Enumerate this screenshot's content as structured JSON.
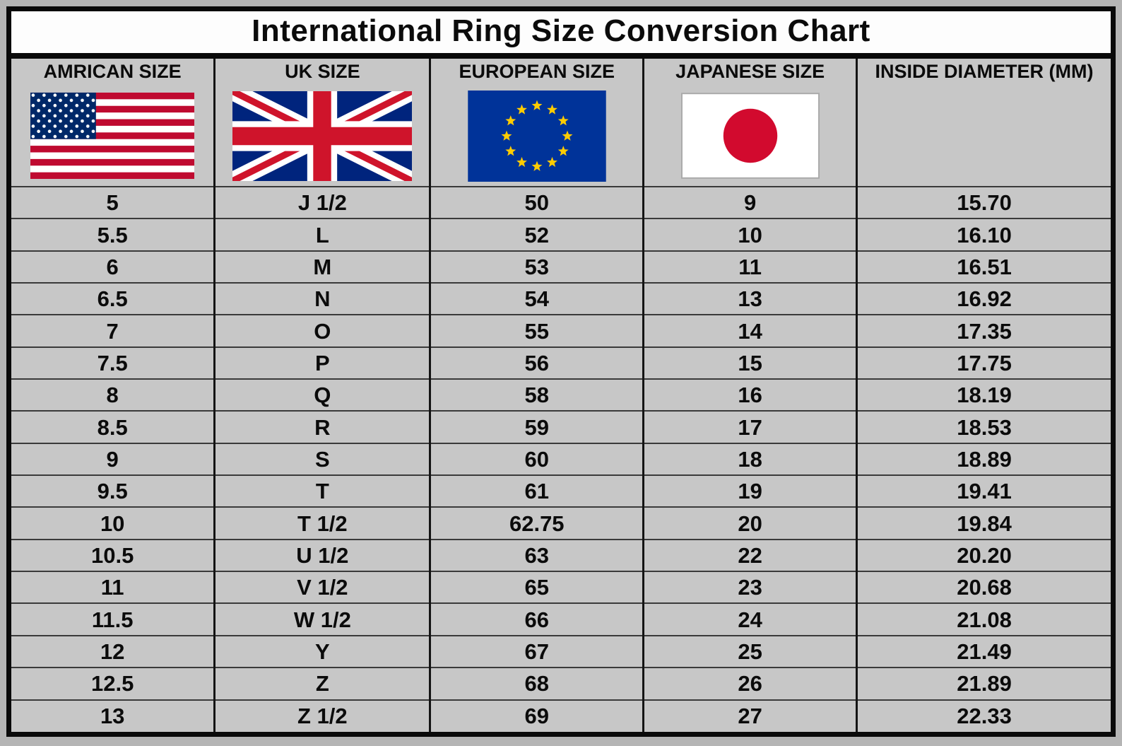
{
  "title": "International Ring Size Conversion Chart",
  "chart_data": {
    "type": "table",
    "title": "International Ring Size Conversion Chart",
    "columns": [
      "AMRICAN SIZE",
      "UK SIZE",
      "EUROPEAN SIZE",
      "JAPANESE SIZE",
      "INSIDE DIAMETER (MM)"
    ],
    "flag_icons": [
      "us-flag-icon",
      "uk-flag-icon",
      "eu-flag-icon",
      "japan-flag-icon"
    ],
    "rows": [
      [
        "5",
        "J 1/2",
        "50",
        "9",
        "15.70"
      ],
      [
        "5.5",
        "L",
        "52",
        "10",
        "16.10"
      ],
      [
        "6",
        "M",
        "53",
        "11",
        "16.51"
      ],
      [
        "6.5",
        "N",
        "54",
        "13",
        "16.92"
      ],
      [
        "7",
        "O",
        "55",
        "14",
        "17.35"
      ],
      [
        "7.5",
        "P",
        "56",
        "15",
        "17.75"
      ],
      [
        "8",
        "Q",
        "58",
        "16",
        "18.19"
      ],
      [
        "8.5",
        "R",
        "59",
        "17",
        "18.53"
      ],
      [
        "9",
        "S",
        "60",
        "18",
        "18.89"
      ],
      [
        "9.5",
        "T",
        "61",
        "19",
        "19.41"
      ],
      [
        "10",
        "T 1/2",
        "62.75",
        "20",
        "19.84"
      ],
      [
        "10.5",
        "U 1/2",
        "63",
        "22",
        "20.20"
      ],
      [
        "11",
        "V 1/2",
        "65",
        "23",
        "20.68"
      ],
      [
        "11.5",
        "W 1/2",
        "66",
        "24",
        "21.08"
      ],
      [
        "12",
        "Y",
        "67",
        "25",
        "21.49"
      ],
      [
        "12.5",
        "Z",
        "68",
        "26",
        "21.89"
      ],
      [
        "13",
        "Z 1/2",
        "69",
        "27",
        "22.33"
      ]
    ]
  },
  "colors": {
    "table_bg": "#c7c7c7",
    "title_bg": "#fdfdfd",
    "border": "#0a0a0a",
    "us_red": "#bf0a30",
    "us_blue": "#002868",
    "uk_blue": "#00247d",
    "uk_red": "#cf142b",
    "eu_blue": "#003399",
    "eu_gold": "#ffcc00",
    "jp_red": "#d20a2e"
  }
}
